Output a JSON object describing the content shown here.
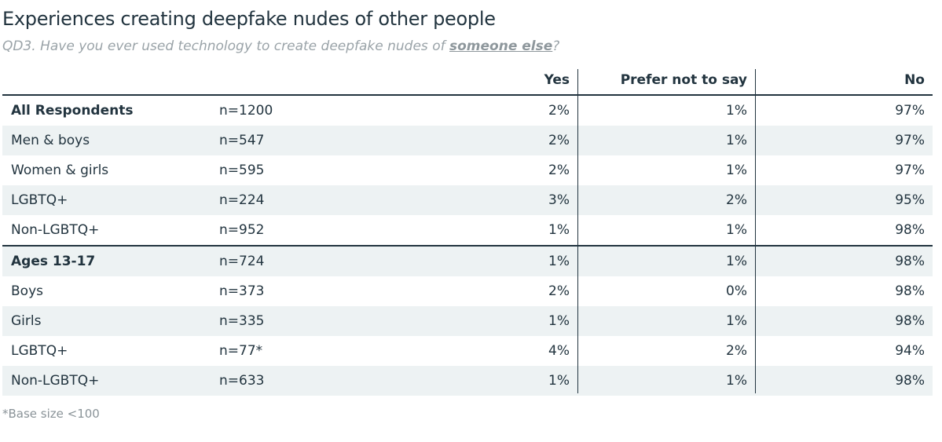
{
  "title": "Experiences creating deepfake nudes of other people",
  "subtitle": {
    "prefix": "QD3. Have you ever used technology to create deepfake nudes of ",
    "emphasis": "someone else",
    "suffix": "?"
  },
  "footnote": "*Base size <100",
  "colors": {
    "text": "#22343f",
    "row_shade": "#edf2f3",
    "rule": "#22343f",
    "subtitle": "#9aa3a8"
  },
  "chart_data": {
    "type": "table",
    "columns": [
      "Yes",
      "Prefer not to say",
      "No"
    ],
    "rows": [
      {
        "label": "All Respondents",
        "n": "n=1200",
        "yes": "2%",
        "prefer": "1%",
        "no": "97%"
      },
      {
        "label": "Men & boys",
        "n": "n=547",
        "yes": "2%",
        "prefer": "1%",
        "no": "97%"
      },
      {
        "label": "Women & girls",
        "n": "n=595",
        "yes": "2%",
        "prefer": "1%",
        "no": "97%"
      },
      {
        "label": "LGBTQ+",
        "n": "n=224",
        "yes": "3%",
        "prefer": "2%",
        "no": "95%"
      },
      {
        "label": "Non-LGBTQ+",
        "n": "n=952",
        "yes": "1%",
        "prefer": "1%",
        "no": "98%"
      },
      {
        "label": "Ages 13-17",
        "n": "n=724",
        "yes": "1%",
        "prefer": "1%",
        "no": "98%"
      },
      {
        "label": "Boys",
        "n": "n=373",
        "yes": "2%",
        "prefer": "0%",
        "no": "98%"
      },
      {
        "label": "Girls",
        "n": "n=335",
        "yes": "1%",
        "prefer": "1%",
        "no": "98%"
      },
      {
        "label": "LGBTQ+",
        "n": "n=77*",
        "yes": "4%",
        "prefer": "2%",
        "no": "94%"
      },
      {
        "label": "Non-LGBTQ+",
        "n": "n=633",
        "yes": "1%",
        "prefer": "1%",
        "no": "98%"
      }
    ]
  }
}
